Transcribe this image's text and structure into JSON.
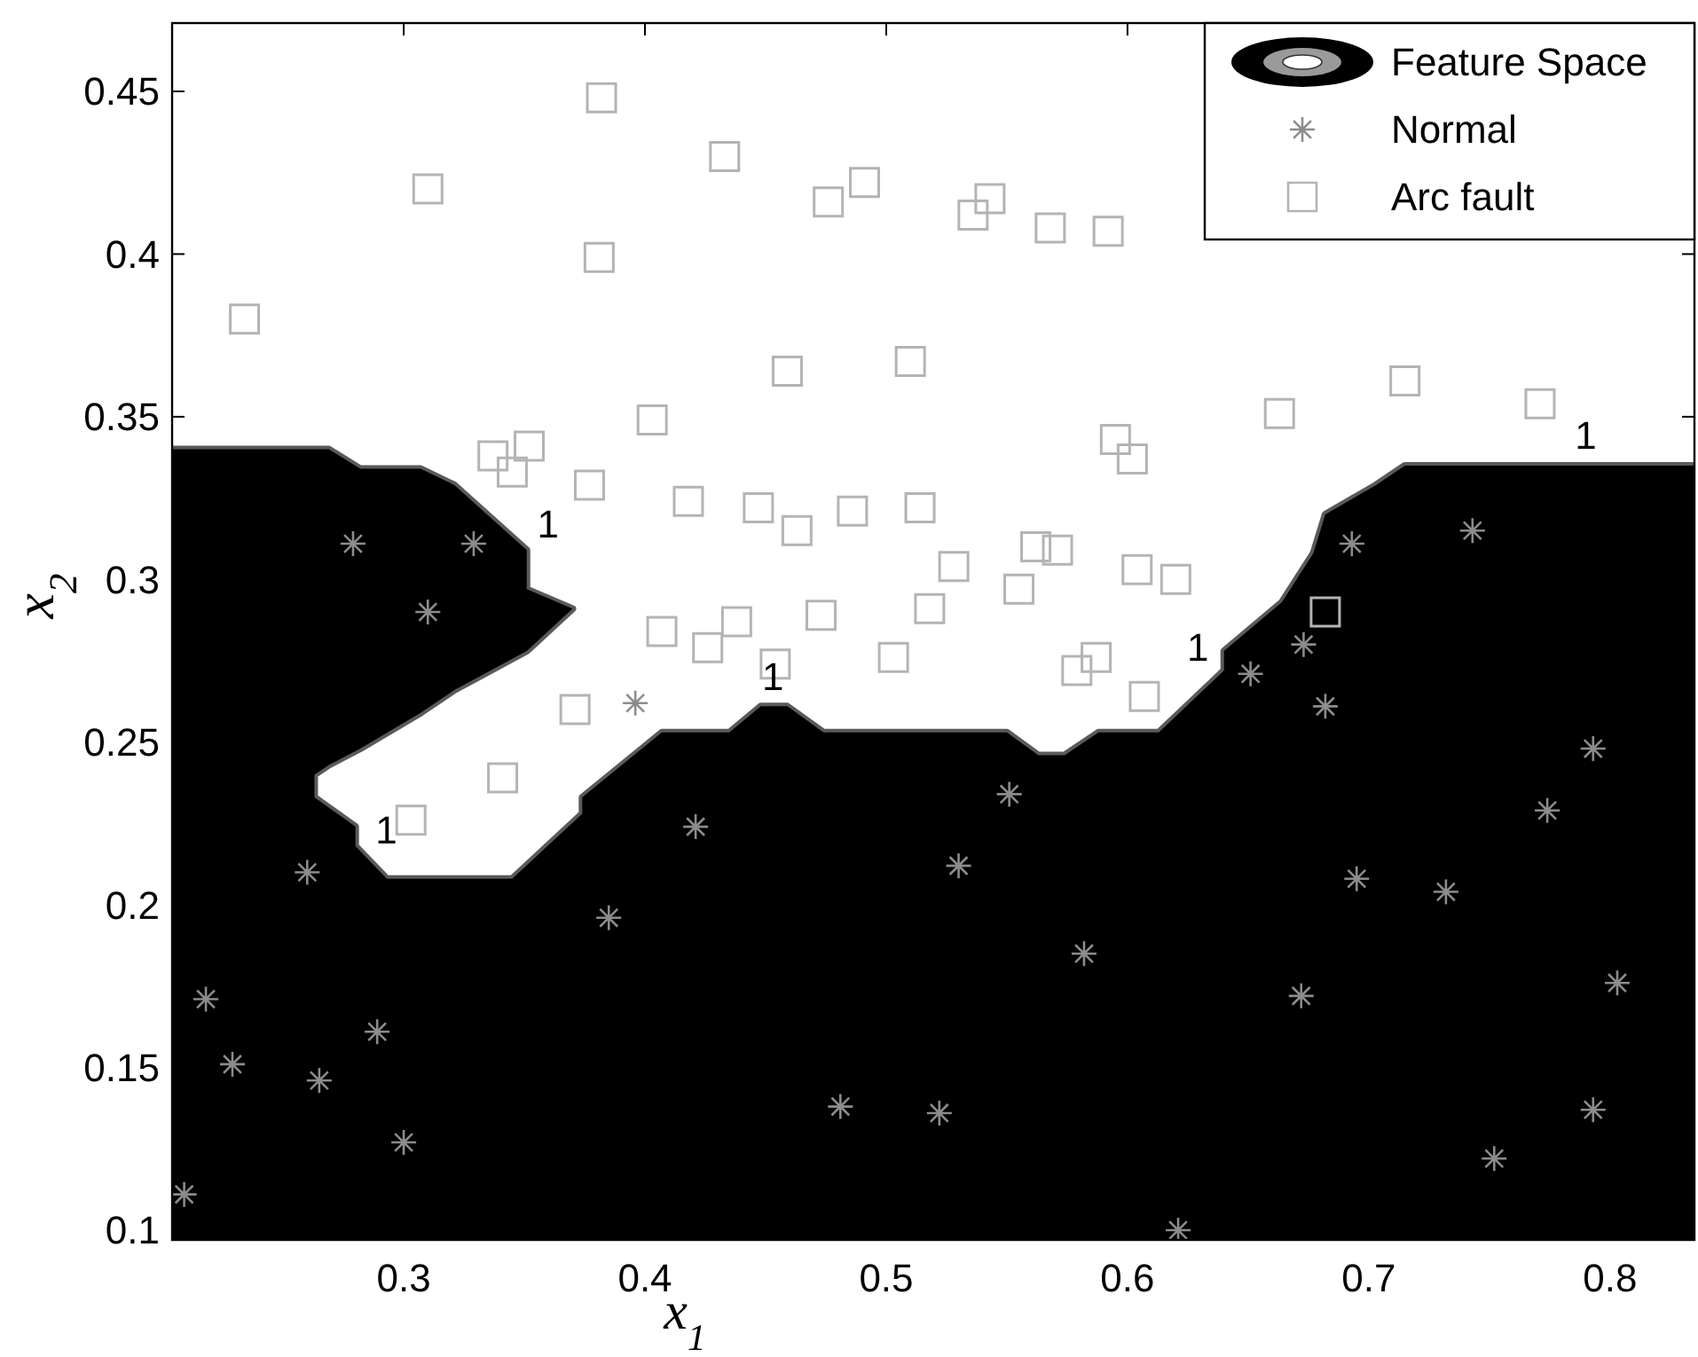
{
  "chart_data": {
    "type": "scatter",
    "xlabel": "x$_{1}$",
    "ylabel": "x$_{2}$",
    "xlim": [
      0.204,
      0.835
    ],
    "ylim": [
      0.097,
      0.471
    ],
    "xticks": [
      0.3,
      0.4,
      0.5,
      0.6,
      0.7,
      0.8
    ],
    "yticks": [
      0.1,
      0.15,
      0.2,
      0.25,
      0.3,
      0.35,
      0.4,
      0.45
    ],
    "grid": false,
    "legend": "top right",
    "series": [
      {
        "name": "Feature Space",
        "type": "area",
        "color": "#000000",
        "x": [
          0.204,
          0.269,
          0.282,
          0.307,
          0.321,
          0.351,
          0.351,
          0.37,
          0.351,
          0.321,
          0.319,
          0.307,
          0.282,
          0.269,
          0.263,
          0.263,
          0.28,
          0.28,
          0.293,
          0.345,
          0.374,
          0.374,
          0.407,
          0.435,
          0.448,
          0.459,
          0.474,
          0.55,
          0.563,
          0.574,
          0.588,
          0.613,
          0.64,
          0.64,
          0.664,
          0.677,
          0.682,
          0.703,
          0.715,
          0.835
        ],
        "values": [
          0.34,
          0.34,
          0.334,
          0.334,
          0.329,
          0.309,
          0.297,
          0.291,
          0.278,
          0.266,
          0.265,
          0.259,
          0.248,
          0.243,
          0.24,
          0.233,
          0.224,
          0.218,
          0.208,
          0.208,
          0.228,
          0.233,
          0.253,
          0.253,
          0.261,
          0.261,
          0.253,
          0.253,
          0.246,
          0.246,
          0.253,
          0.253,
          0.272,
          0.278,
          0.293,
          0.308,
          0.32,
          0.329,
          0.335,
          0.335
        ]
      },
      {
        "name": "Normal",
        "marker": "cross",
        "color": "#8c8c8c",
        "x": [
          0.279,
          0.329,
          0.31,
          0.396,
          0.26,
          0.218,
          0.229,
          0.265,
          0.289,
          0.3,
          0.209,
          0.421,
          0.385,
          0.481,
          0.551,
          0.53,
          0.582,
          0.522,
          0.621,
          0.682,
          0.793,
          0.774,
          0.695,
          0.732,
          0.672,
          0.803,
          0.793,
          0.752,
          0.651,
          0.693,
          0.743,
          0.673
        ],
        "values": [
          0.311,
          0.311,
          0.29,
          0.262,
          0.21,
          0.171,
          0.151,
          0.146,
          0.161,
          0.127,
          0.111,
          0.224,
          0.196,
          0.138,
          0.234,
          0.212,
          0.185,
          0.136,
          0.1,
          0.261,
          0.248,
          0.229,
          0.208,
          0.204,
          0.172,
          0.176,
          0.137,
          0.122,
          0.271,
          0.311,
          0.315,
          0.28
        ]
      },
      {
        "name": "Arc fault",
        "marker": "square",
        "color": "#b4b4b4",
        "x": [
          0.382,
          0.433,
          0.31,
          0.476,
          0.381,
          0.234,
          0.459,
          0.403,
          0.337,
          0.352,
          0.345,
          0.377,
          0.418,
          0.447,
          0.463,
          0.407,
          0.426,
          0.438,
          0.473,
          0.454,
          0.491,
          0.543,
          0.536,
          0.568,
          0.592,
          0.51,
          0.663,
          0.715,
          0.771,
          0.595,
          0.602,
          0.514,
          0.486,
          0.528,
          0.562,
          0.571,
          0.555,
          0.604,
          0.62,
          0.518,
          0.503,
          0.579,
          0.587,
          0.607,
          0.682,
          0.371,
          0.341,
          0.303
        ],
        "values": [
          0.448,
          0.43,
          0.42,
          0.416,
          0.399,
          0.38,
          0.364,
          0.349,
          0.338,
          0.341,
          0.333,
          0.329,
          0.324,
          0.322,
          0.315,
          0.284,
          0.279,
          0.287,
          0.289,
          0.274,
          0.422,
          0.417,
          0.412,
          0.408,
          0.407,
          0.367,
          0.351,
          0.361,
          0.354,
          0.343,
          0.337,
          0.322,
          0.321,
          0.304,
          0.31,
          0.309,
          0.297,
          0.303,
          0.3,
          0.291,
          0.276,
          0.272,
          0.276,
          0.264,
          0.29,
          0.26,
          0.239,
          0.226
        ]
      }
    ],
    "annotations": [
      {
        "text": "1",
        "x": 0.453,
        "y": 0.261
      },
      {
        "text": "1",
        "x": 0.79,
        "y": 0.335
      },
      {
        "text": "1",
        "x": 0.351,
        "y": 0.309
      },
      {
        "text": "1",
        "x": 0.284,
        "y": 0.215
      },
      {
        "text": "1",
        "x": 0.638,
        "y": 0.271
      }
    ]
  }
}
